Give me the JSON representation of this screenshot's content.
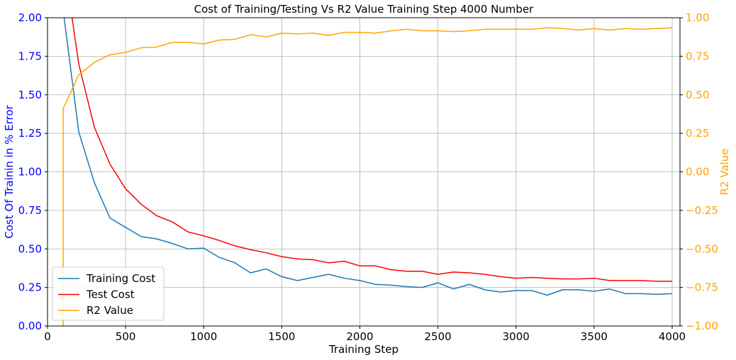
{
  "chart_data": {
    "type": "line",
    "title": "Cost of Training/Testing Vs R2 Value Training Step 4000 Number",
    "xlabel": "Training Step",
    "ylabel_left": "Cost Of Trainin in % Error",
    "ylabel_right": "R2 Value",
    "xlim": [
      0,
      4050
    ],
    "ylim_left": [
      0,
      2.0
    ],
    "ylim_right": [
      -1.0,
      1.0
    ],
    "x_ticks": [
      "0",
      "500",
      "1000",
      "1500",
      "2000",
      "2500",
      "3000",
      "3500",
      "4000"
    ],
    "y_ticks_left": [
      "0.00",
      "0.25",
      "0.50",
      "0.75",
      "1.00",
      "1.25",
      "1.50",
      "1.75",
      "2.00"
    ],
    "y_ticks_right": [
      "−1.00",
      "−0.75",
      "−0.50",
      "−0.25",
      "0.00",
      "0.25",
      "0.50",
      "0.75",
      "1.00"
    ],
    "grid": true,
    "legend_position": "lower-left",
    "colors": {
      "left_axis": "#0000ff",
      "right_axis": "#ffa500"
    },
    "series": [
      {
        "name": "Training Cost",
        "axis": "left",
        "color": "#1f77b4",
        "x": [
          100,
          200,
          300,
          400,
          500,
          600,
          700,
          800,
          900,
          1000,
          1100,
          1200,
          1300,
          1400,
          1500,
          1600,
          1700,
          1800,
          1900,
          2000,
          2100,
          2200,
          2300,
          2400,
          2500,
          2600,
          2700,
          2800,
          2900,
          3000,
          3100,
          3200,
          3300,
          3400,
          3500,
          3600,
          3700,
          3800,
          3900,
          4000
        ],
        "y": [
          2.05,
          1.26,
          0.93,
          0.7,
          0.64,
          0.58,
          0.565,
          0.535,
          0.5,
          0.505,
          0.445,
          0.41,
          0.345,
          0.37,
          0.32,
          0.295,
          0.315,
          0.335,
          0.31,
          0.295,
          0.27,
          0.265,
          0.255,
          0.25,
          0.28,
          0.24,
          0.27,
          0.235,
          0.22,
          0.23,
          0.23,
          0.2,
          0.235,
          0.235,
          0.225,
          0.24,
          0.21,
          0.21,
          0.205,
          0.21
        ]
      },
      {
        "name": "Test Cost",
        "axis": "left",
        "color": "#ff0000",
        "x": [
          150,
          200,
          300,
          400,
          500,
          600,
          700,
          800,
          900,
          1000,
          1100,
          1200,
          1300,
          1400,
          1500,
          1600,
          1700,
          1800,
          1900,
          2000,
          2100,
          2200,
          2300,
          2400,
          2500,
          2600,
          2700,
          2800,
          2900,
          3000,
          3100,
          3200,
          3300,
          3400,
          3500,
          3600,
          3700,
          3800,
          3900,
          4000
        ],
        "y": [
          2.05,
          1.7,
          1.29,
          1.05,
          0.89,
          0.79,
          0.715,
          0.675,
          0.61,
          0.585,
          0.555,
          0.52,
          0.495,
          0.475,
          0.45,
          0.435,
          0.43,
          0.41,
          0.42,
          0.39,
          0.39,
          0.365,
          0.355,
          0.355,
          0.335,
          0.35,
          0.345,
          0.335,
          0.32,
          0.31,
          0.315,
          0.31,
          0.305,
          0.305,
          0.31,
          0.295,
          0.295,
          0.295,
          0.29,
          0.29
        ]
      },
      {
        "name": "R2 Value",
        "axis": "right",
        "color": "#ffa500",
        "x": [
          100,
          100,
          200,
          300,
          400,
          500,
          600,
          700,
          800,
          900,
          1000,
          1100,
          1200,
          1300,
          1400,
          1500,
          1600,
          1700,
          1800,
          1900,
          2000,
          2100,
          2200,
          2300,
          2400,
          2500,
          2600,
          2700,
          2800,
          2900,
          3000,
          3100,
          3200,
          3300,
          3400,
          3500,
          3600,
          3700,
          3800,
          3900,
          4000
        ],
        "y": [
          -1.0,
          0.41,
          0.63,
          0.71,
          0.76,
          0.775,
          0.805,
          0.81,
          0.84,
          0.84,
          0.83,
          0.855,
          0.86,
          0.89,
          0.875,
          0.9,
          0.895,
          0.9,
          0.885,
          0.905,
          0.905,
          0.9,
          0.915,
          0.925,
          0.915,
          0.915,
          0.91,
          0.915,
          0.925,
          0.925,
          0.925,
          0.925,
          0.935,
          0.93,
          0.92,
          0.93,
          0.92,
          0.93,
          0.925,
          0.93,
          0.935
        ]
      }
    ]
  }
}
